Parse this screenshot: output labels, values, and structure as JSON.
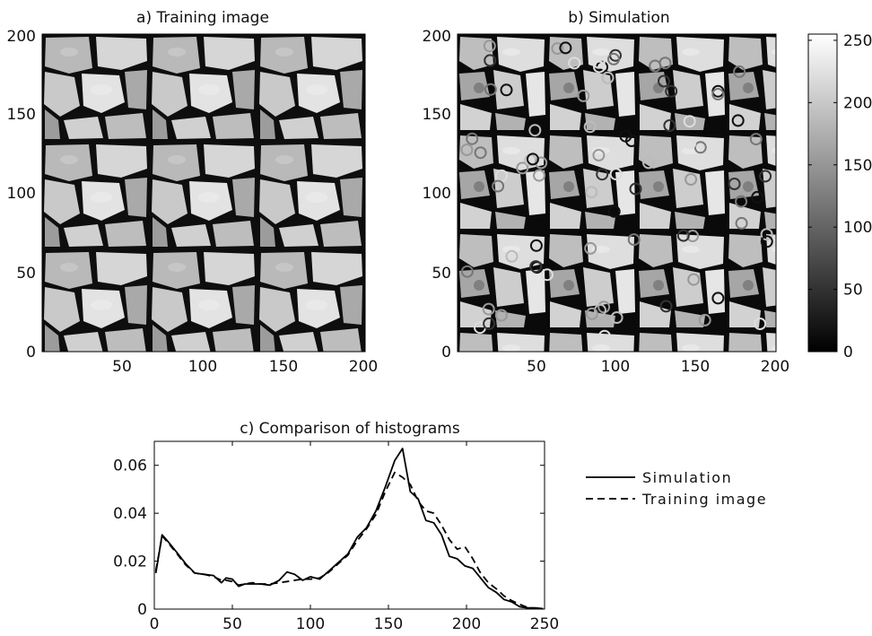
{
  "panels": {
    "a_title": "a) Training image",
    "b_title": "b) Simulation",
    "c_title": "c) Comparison of histograms"
  },
  "image_axes": {
    "x_ticks": [
      "50",
      "100",
      "150",
      "200"
    ],
    "y_ticks": [
      "0",
      "50",
      "100",
      "150",
      "200"
    ]
  },
  "colorbar": {
    "ticks": [
      "0",
      "50",
      "100",
      "150",
      "200",
      "250"
    ],
    "range": [
      0,
      255
    ],
    "colormap": "gray"
  },
  "chart_data": [
    {
      "type": "heatmap",
      "title": "a) Training image",
      "content": "grayscale stone/cobble texture",
      "xlim": [
        0,
        200
      ],
      "ylim": [
        0,
        200
      ]
    },
    {
      "type": "heatmap",
      "title": "b) Simulation",
      "content": "simulated grayscale stone texture with circled conditioning points",
      "xlim": [
        0,
        200
      ],
      "ylim": [
        0,
        200
      ]
    },
    {
      "type": "line",
      "title": "c) Comparison of histograms",
      "xlim": [
        0,
        250
      ],
      "ylim": [
        0,
        0.07
      ],
      "x_ticks": [
        "0",
        "50",
        "100",
        "150",
        "200",
        "250"
      ],
      "y_ticks": [
        "0",
        "0.02",
        "0.04",
        "0.06"
      ],
      "legend_position": "right",
      "series": [
        {
          "name": "Simulation",
          "style": "solid",
          "x": [
            1,
            5,
            9,
            14,
            20,
            26,
            32,
            38,
            43,
            46,
            50,
            54,
            58,
            63,
            68,
            74,
            80,
            85,
            90,
            95,
            100,
            106,
            112,
            118,
            124,
            130,
            136,
            142,
            148,
            154,
            159,
            164,
            169,
            174,
            179,
            184,
            189,
            194,
            199,
            204,
            209,
            214,
            219,
            224,
            229,
            234,
            239,
            244,
            249
          ],
          "values": [
            0.015,
            0.031,
            0.028,
            0.024,
            0.019,
            0.015,
            0.0145,
            0.014,
            0.011,
            0.013,
            0.0125,
            0.0095,
            0.0105,
            0.0105,
            0.0105,
            0.01,
            0.012,
            0.0155,
            0.0145,
            0.012,
            0.0135,
            0.0125,
            0.016,
            0.0195,
            0.023,
            0.03,
            0.034,
            0.041,
            0.051,
            0.062,
            0.067,
            0.049,
            0.046,
            0.037,
            0.036,
            0.031,
            0.022,
            0.021,
            0.018,
            0.017,
            0.013,
            0.009,
            0.007,
            0.004,
            0.003,
            0.001,
            0.0005,
            0.0005,
            0.0002
          ]
        },
        {
          "name": "Training image",
          "style": "dashed",
          "x": [
            1,
            5,
            9,
            14,
            20,
            26,
            32,
            38,
            43,
            46,
            50,
            54,
            58,
            63,
            68,
            74,
            80,
            85,
            90,
            95,
            100,
            106,
            112,
            118,
            124,
            130,
            136,
            142,
            148,
            154,
            159,
            164,
            169,
            174,
            179,
            184,
            189,
            194,
            199,
            204,
            209,
            214,
            219,
            224,
            229,
            234,
            239,
            244,
            249
          ],
          "values": [
            0.016,
            0.0305,
            0.0275,
            0.0235,
            0.0185,
            0.015,
            0.0145,
            0.0135,
            0.012,
            0.012,
            0.0115,
            0.01,
            0.0105,
            0.011,
            0.0105,
            0.0105,
            0.011,
            0.0115,
            0.012,
            0.0125,
            0.0125,
            0.013,
            0.0155,
            0.019,
            0.0225,
            0.0285,
            0.0335,
            0.0395,
            0.049,
            0.057,
            0.055,
            0.052,
            0.045,
            0.041,
            0.04,
            0.035,
            0.029,
            0.025,
            0.026,
            0.021,
            0.015,
            0.011,
            0.0085,
            0.0055,
            0.0035,
            0.002,
            0.0007,
            0.0003,
            0.0001
          ]
        }
      ]
    }
  ]
}
